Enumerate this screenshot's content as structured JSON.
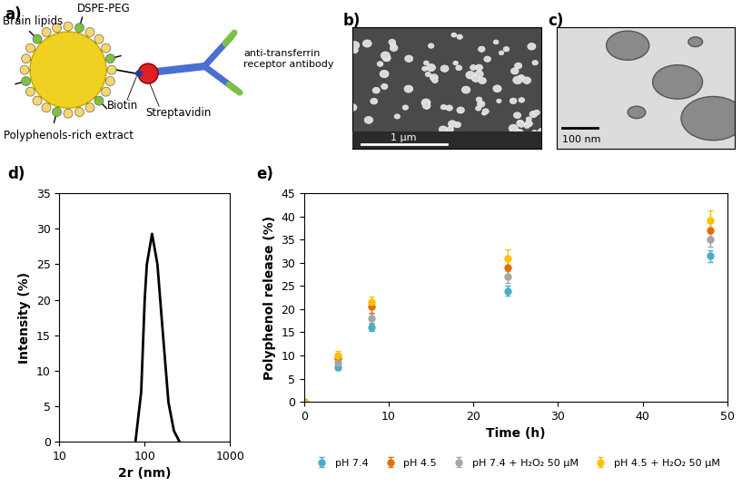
{
  "panel_labels": [
    "a)",
    "b)",
    "c)",
    "d)",
    "e)"
  ],
  "diagram": {
    "labels": {
      "lipids": "Brain lipids",
      "peg": "DSPE-PEG",
      "biotin": "Biotin",
      "streptavidin": "Streptavidin",
      "antibody": "anti-transferrin\nreceptor antibody",
      "core": "Polyphenols-rich extract"
    }
  },
  "images": [
    {
      "scale_bar": "1 μm"
    },
    {
      "scale_bar": "100 nm"
    }
  ],
  "chart_data": [
    {
      "type": "line",
      "xlabel": "2r (nm)",
      "ylabel": "Intensity (%)",
      "x": [
        78,
        91,
        100,
        106,
        122,
        141,
        164,
        190,
        220,
        255
      ],
      "values": [
        0,
        7,
        20,
        25,
        29.3,
        25,
        15,
        5.5,
        1.5,
        0
      ],
      "color": "#000000",
      "log": "x",
      "xlim": [
        10,
        1000
      ],
      "xticks": [
        10,
        100,
        1000
      ],
      "ylim": [
        0,
        35
      ],
      "yticks": [
        0,
        5,
        10,
        15,
        20,
        25,
        30,
        35
      ],
      "grid": false
    },
    {
      "type": "scatter",
      "xlabel": "Time (h)",
      "ylabel": "Polyphenol release (%)",
      "x": [
        0,
        4,
        8,
        24,
        48
      ],
      "series": [
        {
          "name": "pH 7.4",
          "color": "#4bacc6",
          "marker": "o",
          "values": [
            0,
            7.5,
            16,
            24,
            31.5
          ],
          "errors": [
            0,
            0.7,
            0.8,
            1.0,
            1.3
          ]
        },
        {
          "name": "pH 4.5",
          "color": "#e46c0a",
          "marker": "o",
          "values": [
            0,
            9.5,
            20.5,
            29,
            37
          ],
          "errors": [
            0,
            0.8,
            1.2,
            1.5,
            1.8
          ]
        },
        {
          "name": "pH 7.4 + H₂O₂ 50 μM",
          "color": "#a5a5a5",
          "marker": "o",
          "values": [
            0,
            8.5,
            18,
            27,
            35
          ],
          "errors": [
            0,
            0.8,
            1.0,
            1.3,
            1.5
          ]
        },
        {
          "name": "pH 4.5 + H₂O₂ 50 μM",
          "color": "#ffc000",
          "marker": "o",
          "values": [
            0,
            10,
            21.5,
            31,
            39.2
          ],
          "errors": [
            0,
            1.0,
            1.3,
            2.0,
            2.2
          ]
        }
      ],
      "xlim": [
        0,
        50
      ],
      "xticks": [
        0,
        10,
        20,
        30,
        40,
        50
      ],
      "ylim": [
        0,
        45
      ],
      "yticks": [
        0,
        5,
        10,
        15,
        20,
        25,
        30,
        35,
        40,
        45
      ],
      "grid": false,
      "legend": "lower center"
    }
  ]
}
